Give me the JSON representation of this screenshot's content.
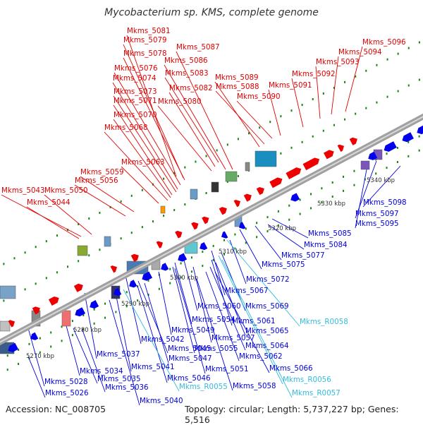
{
  "title": "Mycobacterium sp. KMS, complete genome",
  "accession": "Accession: NC_008705",
  "topology": "Topology: circular; Length: 5,737,227 bp; Genes: 5,516",
  "colors": {
    "forward_label": "#e00000",
    "reverse_label": "#0000dd",
    "rna_label": "#33bbdd",
    "forward_gene": "#ee0000",
    "reverse_gene": "#0000ee",
    "backbone": "#999999",
    "tick_dot": "#118811"
  },
  "ruler": [
    "5270 kbp",
    "5280 kbp",
    "5290 kbp",
    "5300 kbp",
    "5310 kbp",
    "5320 kbp",
    "5330 kbp",
    "5340 kbp"
  ],
  "forward_labels": [
    "Mkms_5081",
    "Mkms_5079",
    "Mkms_5087",
    "Mkms_5078",
    "Mkms_5086",
    "Mkms_5076",
    "Mkms_5083",
    "Mkms_5074",
    "Mkms_5082",
    "Mkms_5073",
    "Mkms_5071",
    "Mkms_5080",
    "Mkms_5070",
    "Mkms_5068",
    "Mkms_5063",
    "Mkms_5059",
    "Mkms_5056",
    "Mkms_5043",
    "Mkms_5050",
    "Mkms_5044",
    "Mkms_5089",
    "Mkms_5088",
    "Mkms_5090",
    "Mkms_5091",
    "Mkms_5092",
    "Mkms_5093",
    "Mkms_5094",
    "Mkms_5096"
  ],
  "reverse_labels": [
    "Mkms_5098",
    "Mkms_5097",
    "Mkms_5095",
    "Mkms_5085",
    "Mkms_5084",
    "Mkms_5077",
    "Mkms_5075",
    "Mkms_5072",
    "Mkms_5067",
    "Mkms_5069",
    "Mkms_5060",
    "Mkms_5061",
    "Mkms_5054",
    "Mkms_5065",
    "Mkms_5049",
    "Mkms_5057",
    "Mkms_5042",
    "Mkms_5064",
    "Mkms_5045",
    "Mkms_5055",
    "Mkms_5062",
    "Mkms_5037",
    "Mkms_5047",
    "Mkms_5051",
    "Mkms_5066",
    "Mkms_5034",
    "Mkms_5041",
    "Mkms_5028",
    "Mkms_5035",
    "Mkms_5046",
    "Mkms_5058",
    "Mkms_5026",
    "Mkms_5036",
    "Mkms_5040"
  ],
  "rna_labels": [
    "Mkms_R0058",
    "Mkms_R0055",
    "Mkms_R0056",
    "Mkms_R0057"
  ]
}
